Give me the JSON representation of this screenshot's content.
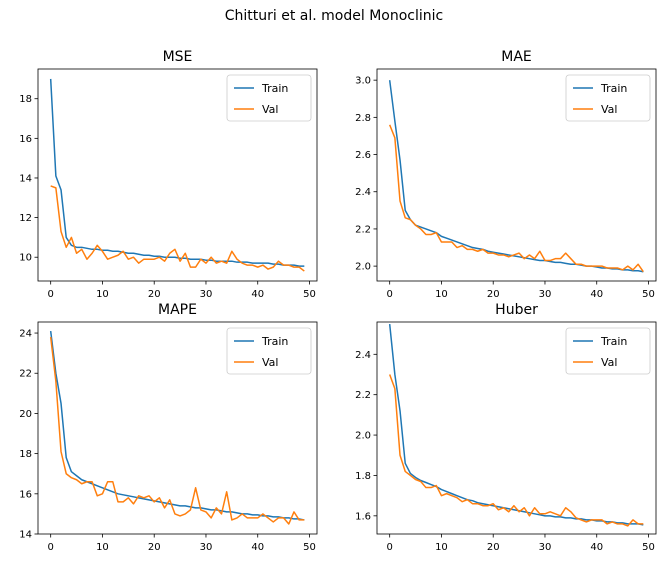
{
  "figure": {
    "title": "Chitturi et al. model Monoclinic"
  },
  "colors": {
    "train": "#1f77b4",
    "val": "#ff7f0e"
  },
  "chart_data": [
    {
      "type": "line",
      "title": "MSE",
      "xlim": [
        -2.45,
        51.45
      ],
      "ylim": [
        8.8,
        19.5
      ],
      "xticks": [
        0,
        10,
        20,
        30,
        40,
        50
      ],
      "yticks": [
        10,
        12,
        14,
        16,
        18
      ],
      "legend": {
        "placement": "upper-right",
        "entries": [
          "Train",
          "Val"
        ]
      },
      "series": [
        {
          "name": "Train",
          "values": [
            19.0,
            14.1,
            13.4,
            11.0,
            10.6,
            10.5,
            10.5,
            10.45,
            10.4,
            10.4,
            10.35,
            10.35,
            10.3,
            10.3,
            10.25,
            10.2,
            10.2,
            10.15,
            10.1,
            10.1,
            10.05,
            10.05,
            10.0,
            10.0,
            10.0,
            9.95,
            9.95,
            9.9,
            9.9,
            9.9,
            9.85,
            9.85,
            9.8,
            9.8,
            9.8,
            9.8,
            9.75,
            9.75,
            9.75,
            9.7,
            9.7,
            9.7,
            9.7,
            9.65,
            9.65,
            9.6,
            9.6,
            9.6,
            9.55,
            9.55
          ]
        },
        {
          "name": "Val",
          "values": [
            13.6,
            13.5,
            11.3,
            10.5,
            11.0,
            10.2,
            10.4,
            9.9,
            10.2,
            10.6,
            10.3,
            9.9,
            10.0,
            10.1,
            10.3,
            9.9,
            10.0,
            9.7,
            9.9,
            9.9,
            9.9,
            10.0,
            9.8,
            10.2,
            10.4,
            9.8,
            10.2,
            9.5,
            9.5,
            9.9,
            9.7,
            10.0,
            9.7,
            9.8,
            9.7,
            10.3,
            9.9,
            9.7,
            9.6,
            9.6,
            9.5,
            9.6,
            9.4,
            9.5,
            9.8,
            9.6,
            9.6,
            9.5,
            9.5,
            9.3
          ]
        }
      ]
    },
    {
      "type": "line",
      "title": "MAE",
      "xlim": [
        -2.45,
        51.45
      ],
      "ylim": [
        1.92,
        3.06
      ],
      "xticks": [
        0,
        10,
        20,
        30,
        40,
        50
      ],
      "yticks": [
        2.0,
        2.2,
        2.4,
        2.6,
        2.8,
        3.0
      ],
      "legend": {
        "placement": "upper-right",
        "entries": [
          "Train",
          "Val"
        ]
      },
      "series": [
        {
          "name": "Train",
          "values": [
            3.0,
            2.78,
            2.57,
            2.3,
            2.25,
            2.22,
            2.21,
            2.2,
            2.19,
            2.18,
            2.16,
            2.15,
            2.14,
            2.13,
            2.12,
            2.11,
            2.1,
            2.095,
            2.09,
            2.08,
            2.075,
            2.07,
            2.065,
            2.06,
            2.055,
            2.05,
            2.045,
            2.04,
            2.035,
            2.03,
            2.03,
            2.025,
            2.02,
            2.02,
            2.015,
            2.01,
            2.01,
            2.005,
            2.0,
            2.0,
            1.995,
            1.99,
            1.99,
            1.985,
            1.985,
            1.98,
            1.98,
            1.975,
            1.975,
            1.97
          ]
        },
        {
          "name": "Val",
          "values": [
            2.76,
            2.69,
            2.35,
            2.26,
            2.25,
            2.22,
            2.2,
            2.17,
            2.17,
            2.18,
            2.13,
            2.13,
            2.13,
            2.1,
            2.11,
            2.09,
            2.09,
            2.08,
            2.09,
            2.07,
            2.07,
            2.06,
            2.06,
            2.05,
            2.06,
            2.07,
            2.04,
            2.06,
            2.04,
            2.08,
            2.03,
            2.03,
            2.04,
            2.04,
            2.07,
            2.04,
            2.01,
            2.01,
            2.0,
            2.0,
            2.0,
            2.0,
            1.99,
            1.99,
            1.99,
            1.98,
            2.0,
            1.98,
            2.01,
            1.97
          ]
        }
      ]
    },
    {
      "type": "line",
      "title": "MAPE",
      "xlim": [
        -2.45,
        51.45
      ],
      "ylim": [
        14.0,
        24.55
      ],
      "xticks": [
        0,
        10,
        20,
        30,
        40,
        50
      ],
      "yticks": [
        14,
        16,
        18,
        20,
        22,
        24
      ],
      "legend": {
        "placement": "upper-right",
        "entries": [
          "Train",
          "Val"
        ]
      },
      "series": [
        {
          "name": "Train",
          "values": [
            24.1,
            22.0,
            20.5,
            17.8,
            17.1,
            16.9,
            16.7,
            16.6,
            16.5,
            16.4,
            16.3,
            16.2,
            16.1,
            16.0,
            15.95,
            15.9,
            15.85,
            15.8,
            15.75,
            15.7,
            15.65,
            15.6,
            15.55,
            15.5,
            15.45,
            15.4,
            15.4,
            15.35,
            15.3,
            15.3,
            15.25,
            15.2,
            15.2,
            15.15,
            15.1,
            15.1,
            15.05,
            15.0,
            15.0,
            14.95,
            14.95,
            14.9,
            14.9,
            14.85,
            14.85,
            14.8,
            14.8,
            14.75,
            14.75,
            14.7
          ]
        },
        {
          "name": "Val",
          "values": [
            23.8,
            21.6,
            18.1,
            17.0,
            16.8,
            16.7,
            16.5,
            16.6,
            16.6,
            15.9,
            16.0,
            16.6,
            16.6,
            15.6,
            15.6,
            15.8,
            15.5,
            15.9,
            15.8,
            15.9,
            15.6,
            15.8,
            15.3,
            15.7,
            15.0,
            14.9,
            15.0,
            15.2,
            16.3,
            15.2,
            15.1,
            14.8,
            15.3,
            15.0,
            16.1,
            14.7,
            14.8,
            15.0,
            14.8,
            14.8,
            14.8,
            15.0,
            14.8,
            14.6,
            14.8,
            14.8,
            14.5,
            15.1,
            14.7,
            14.7
          ]
        }
      ]
    },
    {
      "type": "line",
      "title": "Huber",
      "xlim": [
        -2.45,
        51.45
      ],
      "ylim": [
        1.51,
        2.56
      ],
      "xticks": [
        0,
        10,
        20,
        30,
        40,
        50
      ],
      "yticks": [
        1.6,
        1.8,
        2.0,
        2.2,
        2.4
      ],
      "legend": {
        "placement": "upper-right",
        "entries": [
          "Train",
          "Val"
        ]
      },
      "series": [
        {
          "name": "Train",
          "values": [
            2.55,
            2.3,
            2.12,
            1.86,
            1.81,
            1.79,
            1.775,
            1.765,
            1.755,
            1.745,
            1.73,
            1.72,
            1.71,
            1.7,
            1.69,
            1.68,
            1.675,
            1.665,
            1.66,
            1.655,
            1.65,
            1.645,
            1.64,
            1.635,
            1.63,
            1.625,
            1.62,
            1.615,
            1.61,
            1.605,
            1.6,
            1.6,
            1.595,
            1.595,
            1.59,
            1.59,
            1.585,
            1.585,
            1.58,
            1.58,
            1.575,
            1.575,
            1.57,
            1.57,
            1.565,
            1.565,
            1.56,
            1.56,
            1.56,
            1.555
          ]
        },
        {
          "name": "Val",
          "values": [
            2.3,
            2.23,
            1.9,
            1.82,
            1.8,
            1.78,
            1.77,
            1.74,
            1.74,
            1.75,
            1.7,
            1.71,
            1.7,
            1.69,
            1.67,
            1.68,
            1.66,
            1.66,
            1.65,
            1.65,
            1.66,
            1.63,
            1.64,
            1.62,
            1.65,
            1.62,
            1.64,
            1.6,
            1.64,
            1.61,
            1.61,
            1.62,
            1.61,
            1.6,
            1.64,
            1.62,
            1.59,
            1.58,
            1.57,
            1.58,
            1.58,
            1.58,
            1.56,
            1.57,
            1.56,
            1.56,
            1.55,
            1.58,
            1.56,
            1.56
          ]
        }
      ]
    }
  ]
}
